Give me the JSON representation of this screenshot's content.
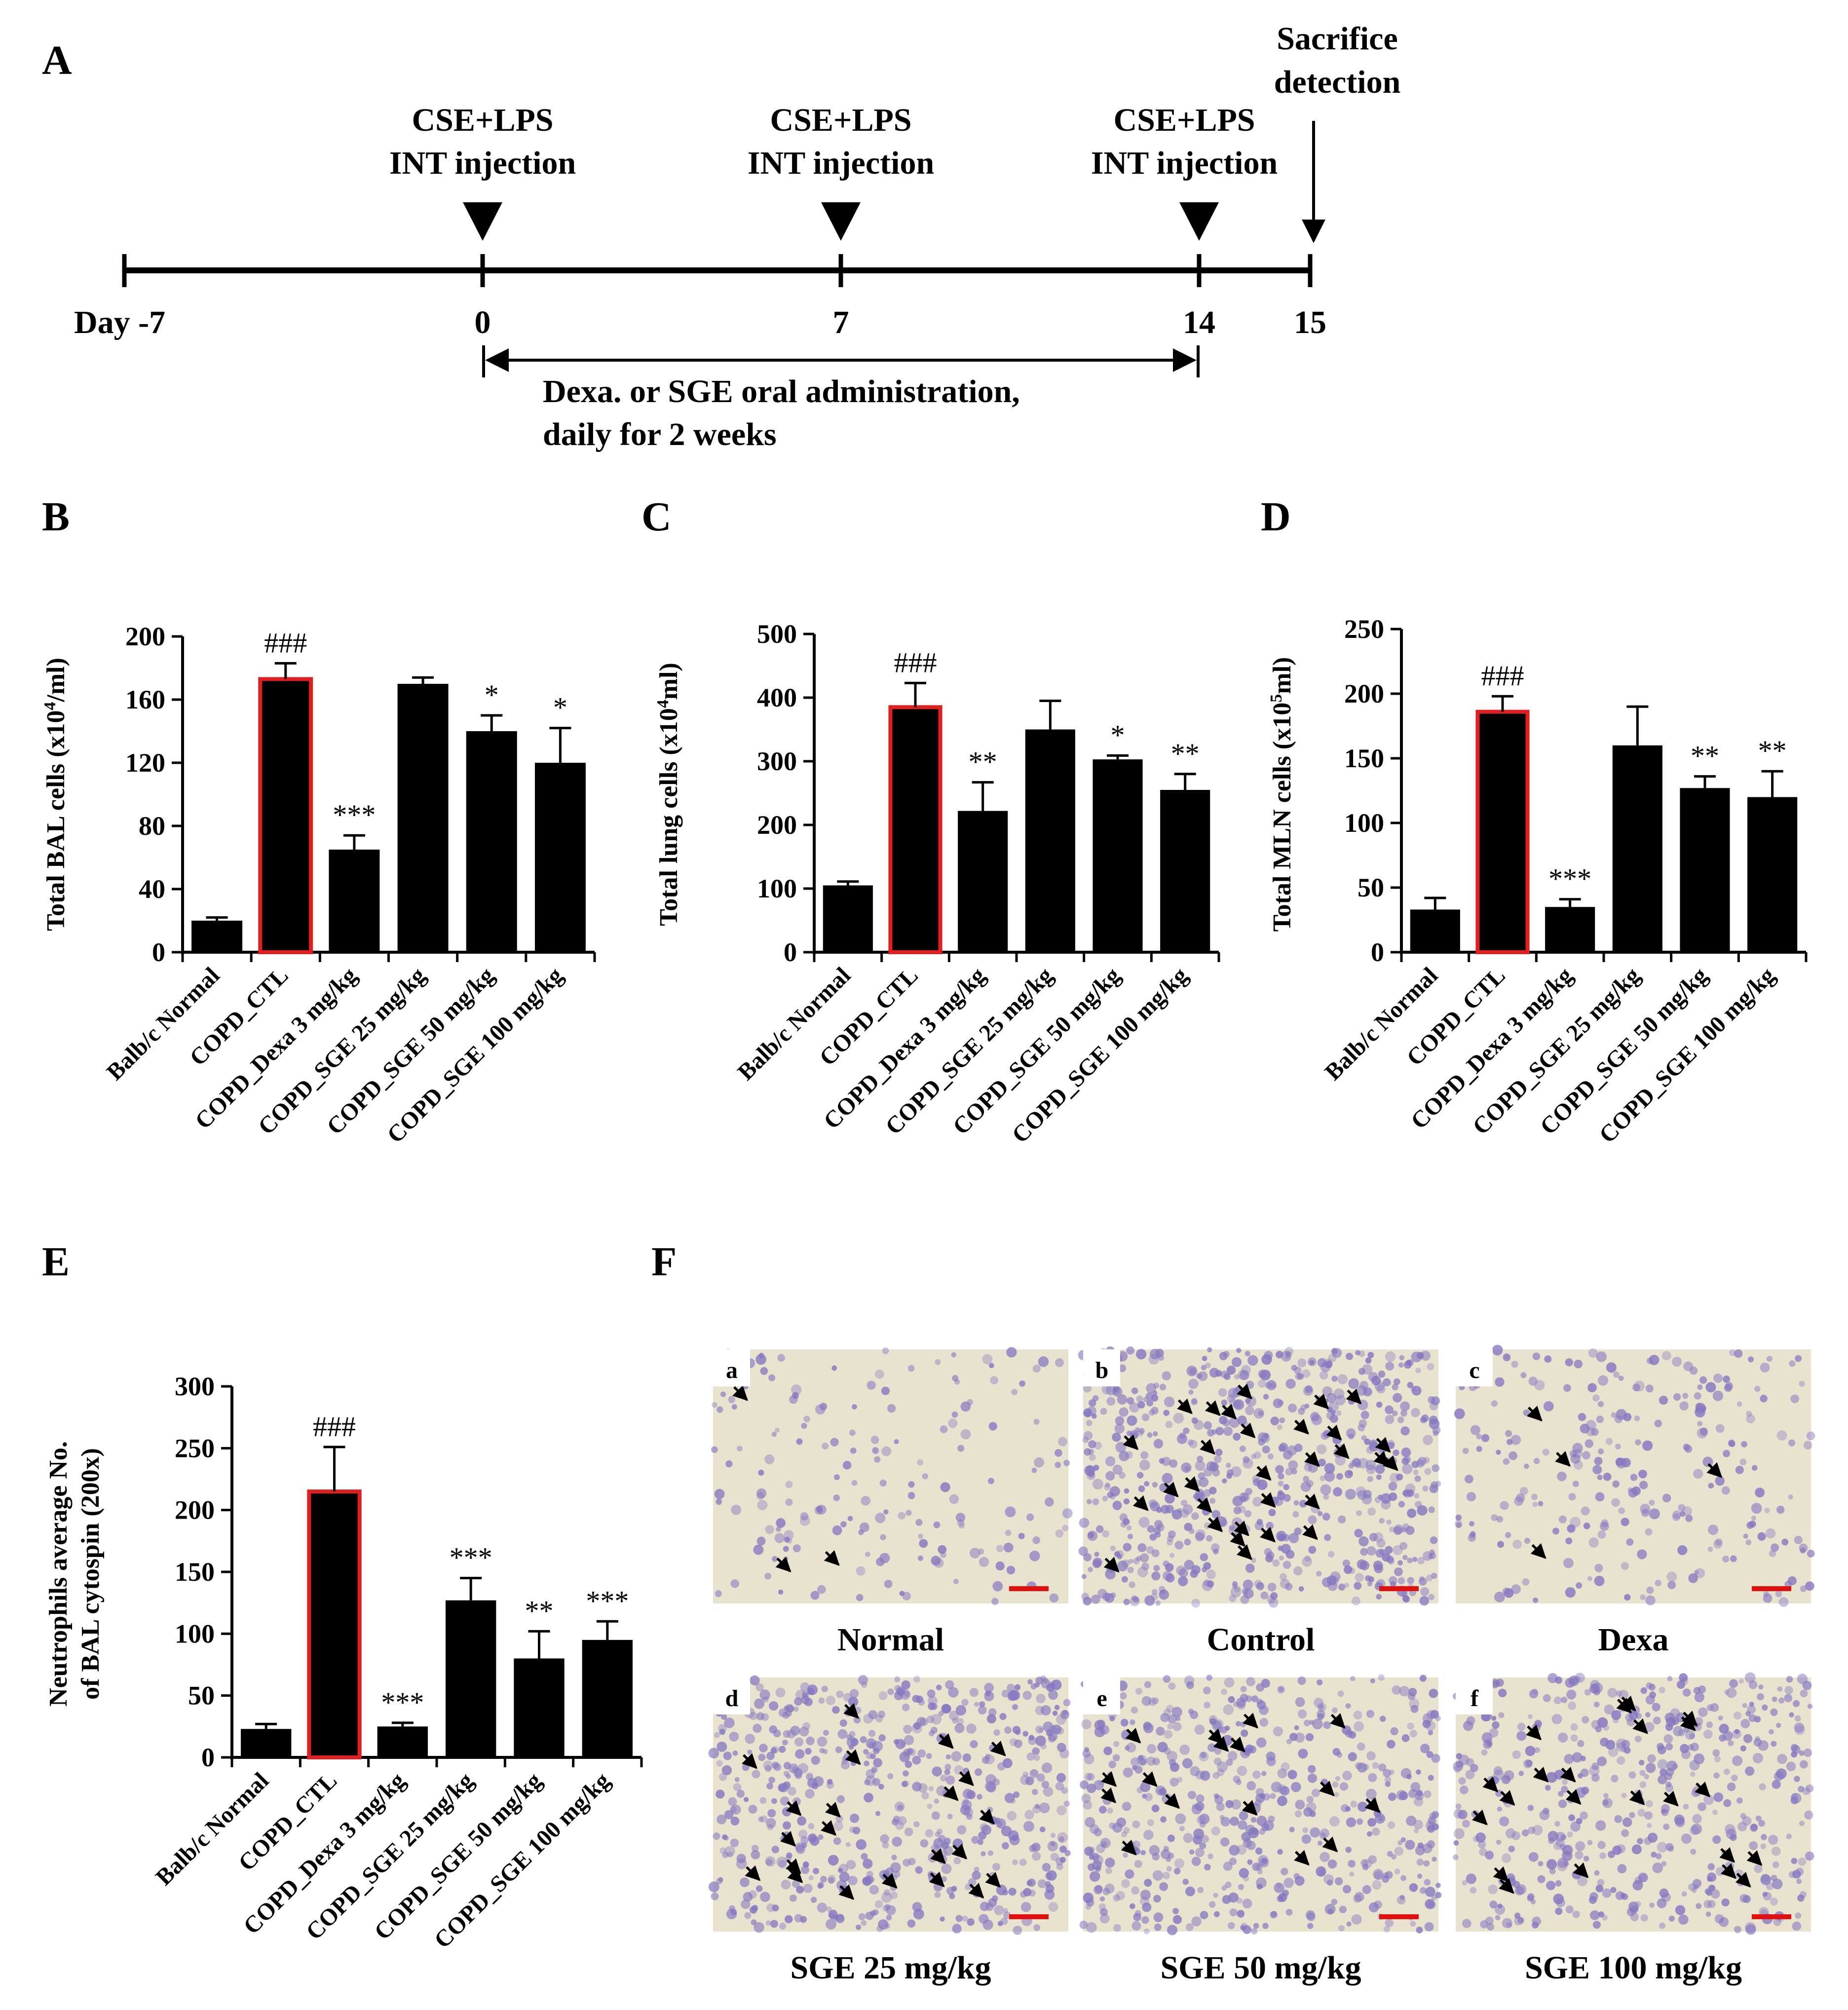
{
  "panels": [
    "A",
    "B",
    "C",
    "D",
    "E",
    "F"
  ],
  "timeline": {
    "ticks": [
      "Day -7",
      "0",
      "7",
      "14",
      "15"
    ],
    "events": [
      {
        "line1": "CSE+LPS",
        "line2": "INT injection"
      },
      {
        "line1": "CSE+LPS",
        "line2": "INT injection"
      },
      {
        "line1": "CSE+LPS",
        "line2": "INT injection"
      }
    ],
    "sacrifice": {
      "line1": "Sacrifice",
      "line2": "detection"
    },
    "admin": {
      "line1": "Dexa. or SGE oral administration,",
      "line2": "daily for 2 weeks"
    }
  },
  "colors": {
    "bar": "#000000",
    "highlight_edge": "#e02020",
    "scale_bar": "#e01010",
    "cell_stain": "#8577c0",
    "background": "#e9e2cf"
  },
  "chart_data": [
    {
      "panel": "B",
      "type": "bar",
      "ylabel_parts": [
        "Total BAL cells (x10",
        "4",
        "/ml)"
      ],
      "categories": [
        "Balb/c Normal",
        "COPD_CTL",
        "COPD_Dexa 3 mg/kg",
        "COPD_SGE 25 mg/kg",
        "COPD_SGE 50 mg/kg",
        "COPD_SGE 100 mg/kg"
      ],
      "values": [
        20,
        173,
        65,
        170,
        140,
        120
      ],
      "errors": [
        2,
        10,
        9,
        4,
        10,
        22
      ],
      "annotations": [
        "",
        "###",
        "***",
        "",
        "*",
        "*"
      ],
      "highlight_index": 1,
      "yticks": [
        "0",
        "40",
        "80",
        "120",
        "160",
        "200"
      ],
      "ylim": [
        0,
        200
      ]
    },
    {
      "panel": "C",
      "type": "bar",
      "ylabel_parts": [
        "Total lung cells (x10",
        "4",
        "ml)"
      ],
      "categories": [
        "Balb/c Normal",
        "COPD_CTL",
        "COPD_Dexa 3 mg/kg",
        "COPD_SGE 25 mg/kg",
        "COPD_SGE 50 mg/kg",
        "COPD_SGE 100 mg/kg"
      ],
      "values": [
        105,
        385,
        222,
        350,
        303,
        255
      ],
      "errors": [
        6,
        38,
        45,
        45,
        6,
        25
      ],
      "annotations": [
        "",
        "###",
        "**",
        "",
        "*",
        "**"
      ],
      "highlight_index": 1,
      "yticks": [
        "0",
        "100",
        "200",
        "300",
        "400",
        "500"
      ],
      "ylim": [
        0,
        500
      ]
    },
    {
      "panel": "D",
      "type": "bar",
      "ylabel_parts": [
        "Total MLN cells (x10",
        "5",
        "ml)"
      ],
      "categories": [
        "Balb/c Normal",
        "COPD_CTL",
        "COPD_Dexa 3 mg/kg",
        "COPD_SGE 25 mg/kg",
        "COPD_SGE 50 mg/kg",
        "COPD_SGE 100 mg/kg"
      ],
      "values": [
        33,
        186,
        35,
        160,
        127,
        120
      ],
      "errors": [
        9,
        12,
        6,
        30,
        9,
        20
      ],
      "annotations": [
        "",
        "###",
        "***",
        "",
        "**",
        "**"
      ],
      "highlight_index": 1,
      "yticks": [
        "0",
        "50",
        "100",
        "150",
        "200",
        "250"
      ],
      "ylim": [
        0,
        250
      ]
    },
    {
      "panel": "E",
      "type": "bar",
      "ylabel_lines": [
        "Neutrophils average No.",
        "of BAL cytospin (200x)"
      ],
      "categories": [
        "Balb/c Normal",
        "COPD_CTL",
        "COPD_Dexa 3 mg/kg",
        "COPD_SGE 25 mg/kg",
        "COPD_SGE 50 mg/kg",
        "COPD_SGE 100 mg/kg"
      ],
      "values": [
        23,
        215,
        25,
        127,
        80,
        95
      ],
      "errors": [
        4,
        36,
        3,
        18,
        22,
        15
      ],
      "annotations": [
        "",
        "###",
        "***",
        "***",
        "**",
        "***"
      ],
      "highlight_index": 1,
      "yticks": [
        "0",
        "50",
        "100",
        "150",
        "200",
        "250",
        "300"
      ],
      "ylim": [
        0,
        300
      ]
    }
  ],
  "micrographs": [
    {
      "letter": "a",
      "caption": "Normal",
      "arrows": 3
    },
    {
      "letter": "b",
      "caption": "Control",
      "arrows": 30
    },
    {
      "letter": "c",
      "caption": "Dexa",
      "arrows": 4
    },
    {
      "letter": "d",
      "caption": "SGE 25 mg/kg",
      "arrows": 22
    },
    {
      "letter": "e",
      "caption": "SGE 50 mg/kg",
      "arrows": 16
    },
    {
      "letter": "f",
      "caption": "SGE 100 mg/kg",
      "arrows": 22
    }
  ]
}
